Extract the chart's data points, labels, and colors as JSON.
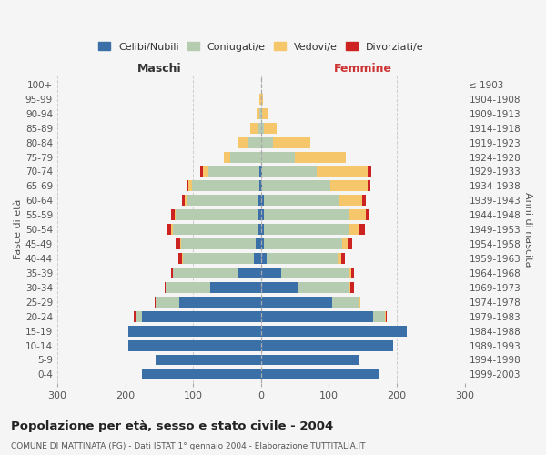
{
  "age_groups": [
    "0-4",
    "5-9",
    "10-14",
    "15-19",
    "20-24",
    "25-29",
    "30-34",
    "35-39",
    "40-44",
    "45-49",
    "50-54",
    "55-59",
    "60-64",
    "65-69",
    "70-74",
    "75-79",
    "80-84",
    "85-89",
    "90-94",
    "95-99",
    "100+"
  ],
  "birth_years": [
    "1999-2003",
    "1994-1998",
    "1989-1993",
    "1984-1988",
    "1979-1983",
    "1974-1978",
    "1969-1973",
    "1964-1968",
    "1959-1963",
    "1954-1958",
    "1949-1953",
    "1944-1948",
    "1939-1943",
    "1934-1938",
    "1929-1933",
    "1924-1928",
    "1919-1923",
    "1914-1918",
    "1909-1913",
    "1904-1908",
    "≤ 1903"
  ],
  "males": {
    "celibi": [
      175,
      155,
      195,
      195,
      175,
      120,
      75,
      35,
      10,
      8,
      5,
      5,
      4,
      2,
      3,
      0,
      0,
      0,
      0,
      0,
      0
    ],
    "coniugati": [
      0,
      0,
      0,
      0,
      10,
      35,
      65,
      95,
      105,
      110,
      125,
      120,
      105,
      100,
      75,
      45,
      20,
      4,
      2,
      0,
      0
    ],
    "vedovi": [
      0,
      0,
      0,
      0,
      0,
      0,
      0,
      0,
      1,
      1,
      2,
      2,
      3,
      5,
      8,
      10,
      15,
      12,
      5,
      2,
      0
    ],
    "divorziati": [
      0,
      0,
      0,
      0,
      2,
      1,
      2,
      3,
      6,
      7,
      7,
      6,
      4,
      3,
      4,
      0,
      0,
      0,
      0,
      0,
      0
    ]
  },
  "females": {
    "nubili": [
      175,
      145,
      195,
      215,
      165,
      105,
      55,
      30,
      8,
      5,
      5,
      4,
      4,
      2,
      2,
      0,
      0,
      0,
      0,
      0,
      0
    ],
    "coniugate": [
      0,
      0,
      0,
      0,
      18,
      40,
      75,
      100,
      105,
      115,
      125,
      125,
      110,
      100,
      80,
      50,
      18,
      5,
      2,
      0,
      0
    ],
    "vedove": [
      0,
      0,
      0,
      0,
      1,
      1,
      2,
      3,
      5,
      8,
      15,
      25,
      35,
      55,
      75,
      75,
      55,
      18,
      8,
      3,
      0
    ],
    "divorziate": [
      0,
      0,
      0,
      0,
      1,
      1,
      5,
      4,
      6,
      7,
      8,
      5,
      5,
      4,
      5,
      0,
      0,
      0,
      0,
      0,
      0
    ]
  },
  "colors": {
    "celibi": "#3a6fa8",
    "coniugati": "#b5ccb0",
    "vedovi": "#f5c76a",
    "divorziati": "#cc2222"
  },
  "title": "Popolazione per età, sesso e stato civile - 2004",
  "subtitle": "COMUNE DI MATTINATA (FG) - Dati ISTAT 1° gennaio 2004 - Elaborazione TUTTITALIA.IT",
  "xlabel_left": "Maschi",
  "xlabel_right": "Femmine",
  "ylabel_left": "Fasce di età",
  "ylabel_right": "Anni di nascita",
  "xlim": 300,
  "legend_labels": [
    "Celibi/Nubili",
    "Coniugati/e",
    "Vedovi/e",
    "Divorziati/e"
  ],
  "bg_color": "#f5f5f5",
  "grid_color": "#cccccc"
}
